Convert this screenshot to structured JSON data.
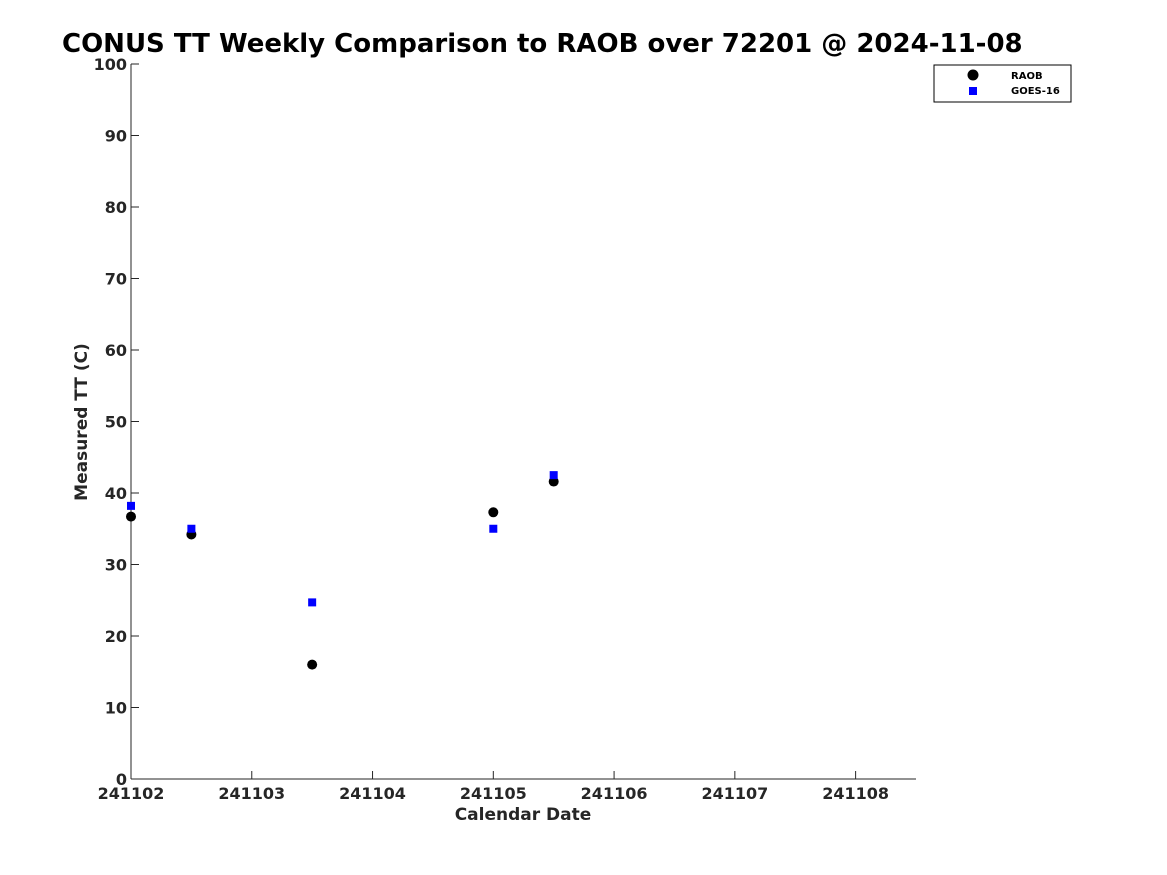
{
  "chart_data": {
    "type": "scatter",
    "title": "CONUS TT Weekly Comparison to RAOB over 72201 @ 2024-11-08",
    "xlabel": "Calendar Date",
    "ylabel": "Measured TT (C)",
    "xlim": [
      0,
      6.5
    ],
    "ylim": [
      0,
      100
    ],
    "x_ticks": [
      {
        "value": 0,
        "label": "241102"
      },
      {
        "value": 1,
        "label": "241103"
      },
      {
        "value": 2,
        "label": "241104"
      },
      {
        "value": 3,
        "label": "241105"
      },
      {
        "value": 4,
        "label": "241106"
      },
      {
        "value": 5,
        "label": "241107"
      },
      {
        "value": 6,
        "label": "241108"
      }
    ],
    "y_ticks": [
      0,
      10,
      20,
      30,
      40,
      50,
      60,
      70,
      80,
      90,
      100
    ],
    "legend_position": "top-right",
    "series": [
      {
        "name": "RAOB",
        "marker": "circle",
        "color": "#000000",
        "x": [
          0,
          0.5,
          1.5,
          3,
          3.5
        ],
        "y": [
          36.7,
          34.2,
          16.0,
          37.3,
          41.6
        ]
      },
      {
        "name": "GOES-16",
        "marker": "square",
        "color": "#0000ff",
        "x": [
          0,
          0.5,
          1.5,
          3,
          3.5
        ],
        "y": [
          38.2,
          35.0,
          24.7,
          35.0,
          42.5
        ]
      }
    ]
  }
}
